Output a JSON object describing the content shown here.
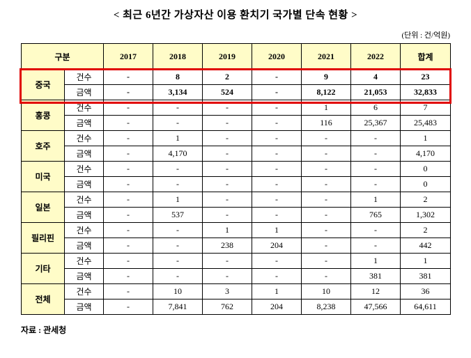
{
  "title": "< 최근 6년간 가상자산 이용 환치기 국가별 단속 현황 >",
  "unit_note": "(단위 : 건/억원)",
  "source": "자료 : 관세청",
  "colors": {
    "header_bg": "#FFFCC8",
    "highlight_border": "#E00000",
    "border": "#000000"
  },
  "table": {
    "col_headers": [
      "구분",
      "2017",
      "2018",
      "2019",
      "2020",
      "2021",
      "2022",
      "합계"
    ],
    "row_labels": {
      "count": "건수",
      "amount": "금액"
    },
    "groups": [
      {
        "name": "중국",
        "highlight": true,
        "count": [
          "-",
          "8",
          "2",
          "-",
          "9",
          "4",
          "23"
        ],
        "amount": [
          "-",
          "3,134",
          "524",
          "-",
          "8,122",
          "21,053",
          "32,833"
        ]
      },
      {
        "name": "홍콩",
        "highlight": false,
        "count": [
          "-",
          "-",
          "-",
          "-",
          "1",
          "6",
          "7"
        ],
        "amount": [
          "-",
          "-",
          "-",
          "-",
          "116",
          "25,367",
          "25,483"
        ]
      },
      {
        "name": "호주",
        "highlight": false,
        "count": [
          "-",
          "1",
          "-",
          "-",
          "-",
          "-",
          "1"
        ],
        "amount": [
          "-",
          "4,170",
          "-",
          "-",
          "-",
          "-",
          "4,170"
        ]
      },
      {
        "name": "미국",
        "highlight": false,
        "count": [
          "-",
          "-",
          "-",
          "-",
          "-",
          "-",
          "0"
        ],
        "amount": [
          "-",
          "-",
          "-",
          "-",
          "-",
          "-",
          "0"
        ]
      },
      {
        "name": "일본",
        "highlight": false,
        "count": [
          "-",
          "1",
          "-",
          "-",
          "-",
          "1",
          "2"
        ],
        "amount": [
          "-",
          "537",
          "-",
          "-",
          "-",
          "765",
          "1,302"
        ]
      },
      {
        "name": "필리핀",
        "highlight": false,
        "count": [
          "-",
          "-",
          "1",
          "1",
          "-",
          "-",
          "2"
        ],
        "amount": [
          "-",
          "-",
          "238",
          "204",
          "-",
          "-",
          "442"
        ]
      },
      {
        "name": "기타",
        "highlight": false,
        "count": [
          "-",
          "-",
          "-",
          "-",
          "-",
          "1",
          "1"
        ],
        "amount": [
          "-",
          "-",
          "-",
          "-",
          "-",
          "381",
          "381"
        ]
      },
      {
        "name": "전체",
        "highlight": false,
        "count": [
          "-",
          "10",
          "3",
          "1",
          "10",
          "12",
          "36"
        ],
        "amount": [
          "-",
          "7,841",
          "762",
          "204",
          "8,238",
          "47,566",
          "64,611"
        ]
      }
    ]
  }
}
